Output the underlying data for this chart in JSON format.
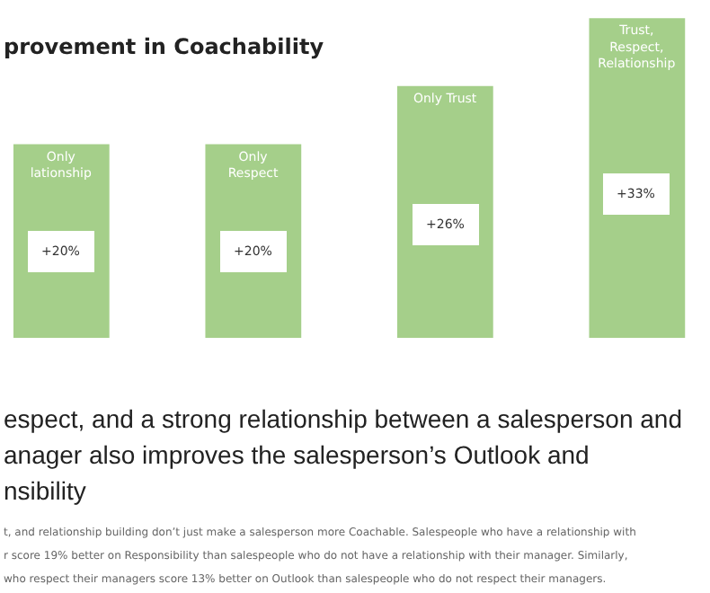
{
  "chart_data": {
    "type": "bar",
    "title": "provement in Coachability",
    "categories": [
      "Only\nlationship",
      "Only\nRespect",
      "Only Trust",
      "Trust,\nRespect,\nRelationship"
    ],
    "values": [
      20,
      20,
      26,
      33
    ],
    "color": "#a5cf8a",
    "value_labels": [
      "+20%",
      "+20%",
      "+26%",
      "+33%"
    ],
    "tick_labels": false,
    "annotations": [
      "espect, and a strong relationship between a salesperson and",
      "anager also improves the salesperson’s Outlook and",
      "nsibility",
      "t, and relationship building don’t just make a salesperson more Coachable. Salespeople who have a relationship with",
      "r score 19% better on Responsibility than salespeople who do not have a relationship with their manager. Similarly,",
      "who respect their managers score 13% better on Outlook than salespeople who do not respect their managers."
    ]
  }
}
